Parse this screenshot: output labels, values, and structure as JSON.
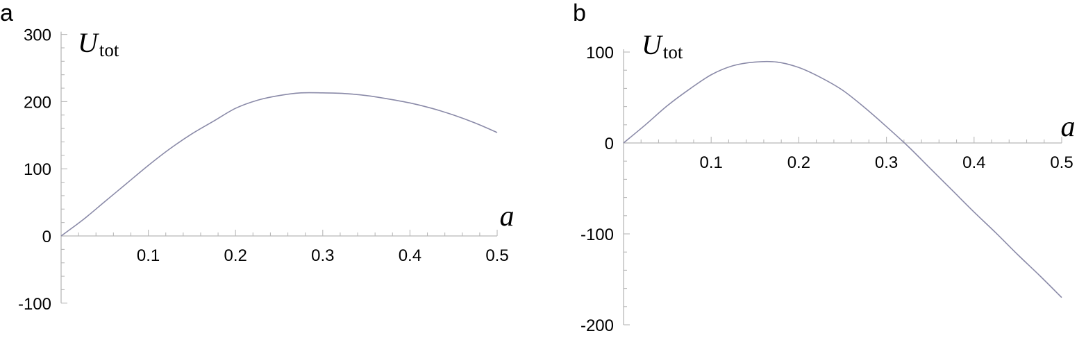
{
  "chart_data": [
    {
      "type": "line",
      "panel": "a",
      "xlabel": "a",
      "ylabel": {
        "main": "U",
        "sub": "tot"
      },
      "xlim": [
        0,
        0.5
      ],
      "ylim": [
        -100,
        300
      ],
      "xticks": [
        {
          "value": 0.1,
          "label": "0.1"
        },
        {
          "value": 0.2,
          "label": "0.2"
        },
        {
          "value": 0.3,
          "label": "0.3"
        },
        {
          "value": 0.4,
          "label": "0.4"
        },
        {
          "value": 0.5,
          "label": "0.5"
        }
      ],
      "yticks": [
        {
          "value": -100,
          "label": "-100"
        },
        {
          "value": 0,
          "label": "0"
        },
        {
          "value": 100,
          "label": "100"
        },
        {
          "value": 200,
          "label": "200"
        },
        {
          "value": 300,
          "label": "300"
        }
      ],
      "series": [
        {
          "color": "#8a8aa8",
          "x": [
            0,
            0.025,
            0.05,
            0.075,
            0.1,
            0.125,
            0.15,
            0.175,
            0.2,
            0.225,
            0.25,
            0.275,
            0.3,
            0.325,
            0.35,
            0.375,
            0.4,
            0.425,
            0.45,
            0.475,
            0.5
          ],
          "y": [
            0,
            24,
            51,
            78,
            105,
            130,
            152,
            171,
            190,
            202,
            209,
            213,
            213,
            212,
            209,
            204,
            198,
            190,
            180,
            168,
            154
          ]
        }
      ]
    },
    {
      "type": "line",
      "panel": "b",
      "xlabel": "a",
      "ylabel": {
        "main": "U",
        "sub": "tot"
      },
      "xlim": [
        0,
        0.5
      ],
      "ylim": [
        -200,
        100
      ],
      "xticks": [
        {
          "value": 0.1,
          "label": "0.1"
        },
        {
          "value": 0.2,
          "label": "0.2"
        },
        {
          "value": 0.3,
          "label": "0.3"
        },
        {
          "value": 0.4,
          "label": "0.4"
        },
        {
          "value": 0.5,
          "label": "0.5"
        }
      ],
      "yticks": [
        {
          "value": -200,
          "label": "-200"
        },
        {
          "value": -100,
          "label": "-100"
        },
        {
          "value": 0,
          "label": "0"
        },
        {
          "value": 100,
          "label": "100"
        }
      ],
      "series": [
        {
          "color": "#8a8aa8",
          "x": [
            0,
            0.025,
            0.05,
            0.075,
            0.1,
            0.125,
            0.15,
            0.175,
            0.2,
            0.225,
            0.25,
            0.275,
            0.3,
            0.325,
            0.35,
            0.375,
            0.4,
            0.425,
            0.45,
            0.475,
            0.5
          ],
          "y": [
            0,
            20,
            41,
            59,
            75,
            85,
            89,
            89,
            83,
            72,
            58,
            39,
            18,
            -4,
            -28,
            -52,
            -76,
            -99,
            -123,
            -146,
            -170
          ]
        }
      ]
    }
  ]
}
